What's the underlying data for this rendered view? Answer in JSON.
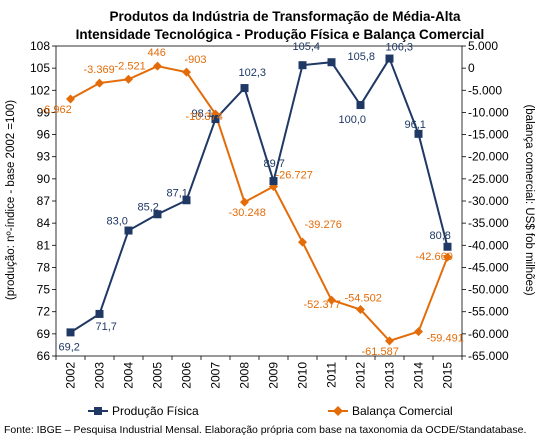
{
  "chart_data": {
    "type": "line",
    "title": "Produtos da Indústria de Transformação de Média-Alta",
    "subtitle": "Intensidade Tecnológica - Produção Física e Balança Comercial",
    "x": [
      "2002",
      "2003",
      "2004",
      "2005",
      "2006",
      "2007",
      "2008",
      "2009",
      "2010",
      "2011",
      "2012",
      "2013",
      "2014",
      "2015"
    ],
    "y_left_label": "(produção: nº-índice - base 2002 =100)",
    "y_right_label": "(balança comercial: US$ fob milhões)",
    "y_left_lim": [
      66,
      108
    ],
    "y_left_ticks": [
      "66",
      "69",
      "72",
      "75",
      "78",
      "81",
      "84",
      "87",
      "90",
      "93",
      "96",
      "99",
      "102",
      "105",
      "108"
    ],
    "y_right_lim": [
      -65000,
      5000
    ],
    "y_right_ticks": [
      "5.000",
      "0",
      "-5.000",
      "-10.000",
      "-15.000",
      "-20.000",
      "-25.000",
      "-30.000",
      "-35.000",
      "-40.000",
      "-45.000",
      "-50.000",
      "-55.000",
      "-60.000",
      "-65.000"
    ],
    "grid": false,
    "legend_position": "bottom",
    "series": [
      {
        "name": "Produção Física",
        "axis": "left",
        "color": "#1f3864",
        "marker": "square",
        "values": [
          69.2,
          71.7,
          83.0,
          85.2,
          87.1,
          98.1,
          102.3,
          89.7,
          105.4,
          105.8,
          100.0,
          106.3,
          96.1,
          80.8
        ],
        "labels": [
          "69,2",
          "71,7",
          "83,0",
          "85,2",
          "87,1",
          "98,1",
          "102,3",
          "89,7",
          "105,4",
          "",
          "100,0",
          "106,3",
          "96,1",
          "80,8"
        ],
        "label_extra": "105,8"
      },
      {
        "name": "Balança Comercial",
        "axis": "right",
        "color": "#e36c09",
        "marker": "diamond",
        "values": [
          -6962,
          -3369,
          -2521,
          446,
          -903,
          -10374,
          -30248,
          -26727,
          -39276,
          -52377,
          -54502,
          -61587,
          -59491,
          -42660
        ],
        "labels": [
          "-6.962",
          "-3.369",
          "-2.521",
          "446",
          "-903",
          "-10.374",
          "-30.248",
          "-26.727",
          "-39.276",
          "-52.377",
          "-54.502",
          "-61.587",
          "-59.491",
          "-42.660"
        ]
      }
    ],
    "source": "Fonte: IBGE – Pesquisa Industrial Mensal. Elaboração própria com base na taxonomia da OCDE/Standatabase."
  }
}
